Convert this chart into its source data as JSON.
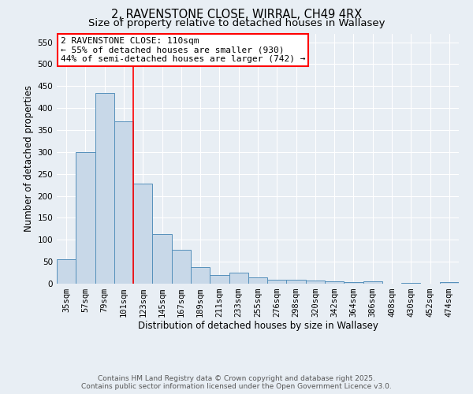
{
  "title1": "2, RAVENSTONE CLOSE, WIRRAL, CH49 4RX",
  "title2": "Size of property relative to detached houses in Wallasey",
  "xlabel": "Distribution of detached houses by size in Wallasey",
  "ylabel": "Number of detached properties",
  "bins": [
    "35sqm",
    "57sqm",
    "79sqm",
    "101sqm",
    "123sqm",
    "145sqm",
    "167sqm",
    "189sqm",
    "211sqm",
    "233sqm",
    "255sqm",
    "276sqm",
    "298sqm",
    "320sqm",
    "342sqm",
    "364sqm",
    "386sqm",
    "408sqm",
    "430sqm",
    "452sqm",
    "474sqm"
  ],
  "values": [
    55,
    300,
    435,
    370,
    228,
    113,
    78,
    38,
    20,
    26,
    15,
    9,
    9,
    8,
    5,
    4,
    5,
    0,
    1,
    0,
    3
  ],
  "bar_color": "#c8d8e8",
  "bar_edge_color": "#5590bb",
  "bar_width": 1.0,
  "red_line_x": 3.5,
  "annotation_line1": "2 RAVENSTONE CLOSE: 110sqm",
  "annotation_line2": "← 55% of detached houses are smaller (930)",
  "annotation_line3": "44% of semi-detached houses are larger (742) →",
  "annotation_box_color": "white",
  "annotation_box_edge_color": "red",
  "ylim": [
    0,
    570
  ],
  "yticks": [
    0,
    50,
    100,
    150,
    200,
    250,
    300,
    350,
    400,
    450,
    500,
    550
  ],
  "background_color": "#e8eef4",
  "footer1": "Contains HM Land Registry data © Crown copyright and database right 2025.",
  "footer2": "Contains public sector information licensed under the Open Government Licence v3.0.",
  "title_fontsize": 10.5,
  "subtitle_fontsize": 9.5,
  "axis_label_fontsize": 8.5,
  "tick_fontsize": 7.5,
  "annotation_fontsize": 8,
  "footer_fontsize": 6.5
}
